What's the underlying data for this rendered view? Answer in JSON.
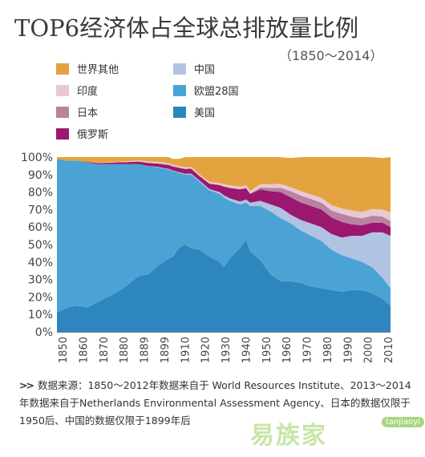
{
  "title": "TOP6经济体占全球总排放量比例",
  "subtitle": "（1850～2014）",
  "colors": {
    "世界其他": "#e4a33f",
    "印度": "#e8c8d3",
    "日本": "#b882a1",
    "俄罗斯": "#9b1770",
    "中国": "#b1c3e3",
    "欧盟28国": "#4aa3d4",
    "美国": "#2e86bf"
  },
  "source_note": {
    "arrow": ">>",
    "text": "数据来源：1850～2012年数据来自于 World Resources Institute、2013～2014年数据来自于Netherlands Environmental Assessment Agency、日本的数据仅限于1950后、中国的数据仅限于1899年后"
  },
  "watermark": {
    "text": "易族家",
    "domain": "tanjiaoyi"
  },
  "chart_data": {
    "type": "area",
    "stacked": true,
    "ylim": [
      0,
      100
    ],
    "yticks": [
      "0%",
      "10%",
      "20%",
      "30%",
      "40%",
      "50%",
      "60%",
      "70%",
      "80%",
      "90%",
      "100%"
    ],
    "xtick_labels": [
      "1850",
      "1860",
      "1870",
      "1880",
      "1889",
      "1899",
      "1910",
      "1920",
      "1930",
      "1940",
      "1950",
      "1960",
      "1970",
      "1980",
      "1990",
      "2000",
      "2010"
    ],
    "x": [
      1850,
      1855,
      1860,
      1865,
      1870,
      1875,
      1880,
      1885,
      1890,
      1895,
      1900,
      1905,
      1907,
      1910,
      1913,
      1916,
      1920,
      1925,
      1930,
      1932,
      1935,
      1940,
      1943,
      1945,
      1950,
      1955,
      1960,
      1965,
      1970,
      1975,
      1980,
      1985,
      1990,
      1995,
      2000,
      2005,
      2010,
      2014
    ],
    "legend_order": [
      "世界其他",
      "印度",
      "日本",
      "俄罗斯",
      "中国",
      "欧盟28国",
      "美国"
    ],
    "series": [
      {
        "name": "美国",
        "values": [
          11,
          14,
          15,
          14,
          17,
          20,
          23,
          27,
          32,
          33,
          38,
          42,
          43,
          48,
          50,
          48,
          47,
          43,
          40,
          37,
          42,
          48,
          53,
          46,
          41,
          33,
          29,
          29,
          28,
          26,
          25,
          24,
          23,
          24,
          24,
          22,
          19,
          15
        ]
      },
      {
        "name": "欧盟28国",
        "values": [
          88,
          84,
          83,
          83,
          79,
          76,
          73,
          69,
          64,
          62,
          56,
          51,
          49,
          43,
          40,
          42,
          39,
          38,
          39,
          40,
          33,
          25,
          21,
          26,
          31,
          36,
          36,
          33,
          30,
          29,
          27,
          23,
          21,
          18,
          16,
          15,
          12,
          10
        ]
      },
      {
        "name": "中国",
        "values": [
          0,
          0,
          0,
          0,
          0,
          0,
          0,
          0,
          0,
          0,
          0.3,
          0.3,
          0.4,
          0.4,
          0.5,
          0.6,
          0.7,
          0.8,
          1,
          1.2,
          1.4,
          1.6,
          1.8,
          2,
          3,
          4,
          6,
          5,
          6,
          7,
          8,
          9,
          10,
          13,
          15,
          20,
          26,
          30
        ]
      },
      {
        "name": "俄罗斯",
        "values": [
          0,
          0,
          0,
          0.3,
          0.6,
          0.8,
          1,
          1.2,
          1.5,
          1.7,
          2,
          2.2,
          2.3,
          2.5,
          2.7,
          2.8,
          2.5,
          3,
          4,
          5,
          6,
          7,
          6.5,
          5,
          6.5,
          7.5,
          9,
          10,
          10,
          10,
          10,
          9.5,
          9,
          6.5,
          6,
          5.5,
          5.5,
          5
        ]
      },
      {
        "name": "日本",
        "values": [
          0,
          0,
          0,
          0,
          0,
          0,
          0,
          0,
          0,
          0,
          0,
          0,
          0,
          0,
          0,
          0,
          0,
          0,
          0,
          0,
          0,
          0,
          0,
          0,
          1.2,
          2,
          2.5,
          3.5,
          4,
          4,
          4,
          4,
          4.5,
          4.5,
          4,
          4,
          3.5,
          3.5
        ]
      },
      {
        "name": "印度",
        "values": [
          0,
          0,
          0,
          0,
          0.2,
          0.3,
          0.4,
          0.5,
          0.6,
          0.8,
          1,
          1,
          1,
          1,
          1,
          1,
          1,
          1,
          1.2,
          1.3,
          1.4,
          1.5,
          1.6,
          1.7,
          1.8,
          2,
          2.2,
          2.3,
          2.5,
          2.6,
          2.8,
          3,
          3.2,
          3.5,
          3.7,
          3.8,
          4,
          5
        ]
      },
      {
        "name": "世界其他",
        "values": [
          1,
          2,
          2,
          2.7,
          3.2,
          2.9,
          2.6,
          2.3,
          1.9,
          2.5,
          2.7,
          3.5,
          3.3,
          4.1,
          5.8,
          5.6,
          9.8,
          14.2,
          14.8,
          15.5,
          16.2,
          16.9,
          16.1,
          19.3,
          15.5,
          15.5,
          15.3,
          16.7,
          19.5,
          21.4,
          23.2,
          27.5,
          29.3,
          30.5,
          31.3,
          29.7,
          29.5,
          31.5
        ]
      }
    ]
  }
}
